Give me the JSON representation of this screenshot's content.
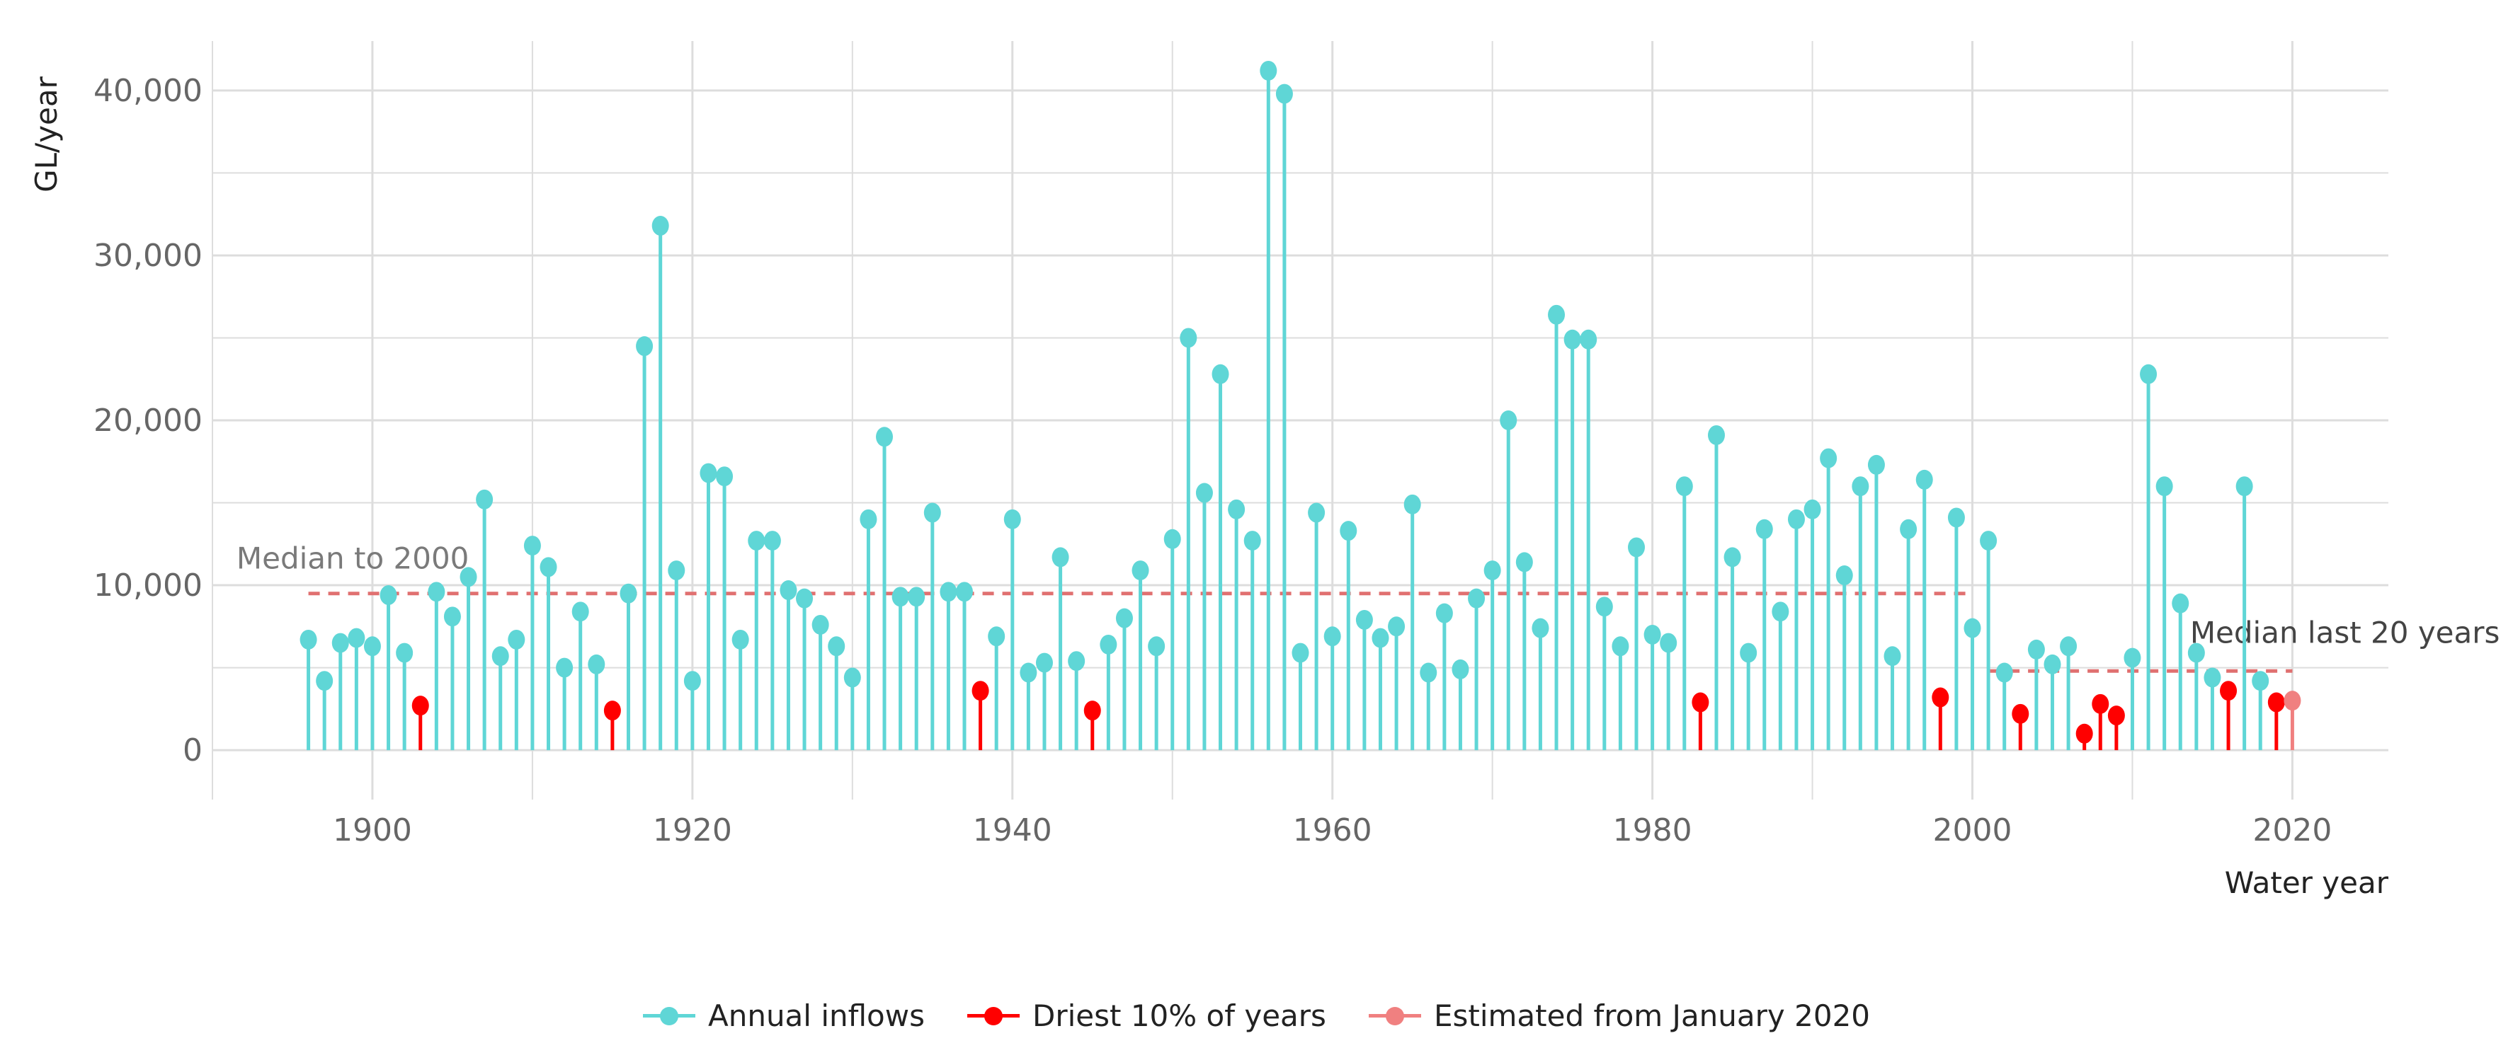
{
  "chart_data": {
    "type": "lollipop",
    "title": "",
    "xlabel": "Water year",
    "ylabel": "GL/year",
    "xlim": [
      1890,
      2026
    ],
    "ylim": [
      -3000,
      43000
    ],
    "x_ticks": [
      1900,
      1920,
      1940,
      1960,
      1980,
      2000,
      2020
    ],
    "y_ticks": [
      0,
      10000,
      20000,
      30000,
      40000
    ],
    "y_tick_labels": [
      "0",
      "10,000",
      "20,000",
      "30,000",
      "40,000"
    ],
    "x_tick_labels": [
      "1900",
      "1920",
      "1940",
      "1960",
      "1980",
      "2000",
      "2020"
    ],
    "grid": true,
    "colors": {
      "annual": "#5fd6d6",
      "driest": "#ff0000",
      "estimated": "#f08080",
      "median_line": "#e07070",
      "grid": "#dddddd"
    },
    "series": [
      {
        "name": "Annual inflows",
        "key": "annual",
        "points": [
          [
            1896,
            6700
          ],
          [
            1897,
            4200
          ],
          [
            1898,
            6500
          ],
          [
            1899,
            6800
          ],
          [
            1900,
            6300
          ],
          [
            1901,
            9400
          ],
          [
            1902,
            5900
          ],
          [
            1904,
            9600
          ],
          [
            1905,
            8100
          ],
          [
            1906,
            10500
          ],
          [
            1907,
            15200
          ],
          [
            1908,
            5700
          ],
          [
            1909,
            6700
          ],
          [
            1910,
            12400
          ],
          [
            1911,
            11100
          ],
          [
            1912,
            5000
          ],
          [
            1913,
            8400
          ],
          [
            1914,
            5200
          ],
          [
            1916,
            9500
          ],
          [
            1917,
            24500
          ],
          [
            1918,
            31800
          ],
          [
            1919,
            10900
          ],
          [
            1920,
            4200
          ],
          [
            1921,
            16800
          ],
          [
            1922,
            16600
          ],
          [
            1923,
            6700
          ],
          [
            1924,
            12700
          ],
          [
            1925,
            12700
          ],
          [
            1926,
            9700
          ],
          [
            1927,
            9200
          ],
          [
            1928,
            7600
          ],
          [
            1929,
            6300
          ],
          [
            1930,
            4400
          ],
          [
            1931,
            14000
          ],
          [
            1932,
            19000
          ],
          [
            1933,
            9300
          ],
          [
            1934,
            9300
          ],
          [
            1935,
            14400
          ],
          [
            1936,
            9600
          ],
          [
            1937,
            9600
          ],
          [
            1939,
            6900
          ],
          [
            1940,
            14000
          ],
          [
            1941,
            4700
          ],
          [
            1942,
            5300
          ],
          [
            1943,
            11700
          ],
          [
            1944,
            5400
          ],
          [
            1946,
            6400
          ],
          [
            1947,
            8000
          ],
          [
            1948,
            10900
          ],
          [
            1949,
            6300
          ],
          [
            1950,
            12800
          ],
          [
            1951,
            25000
          ],
          [
            1952,
            15600
          ],
          [
            1953,
            22800
          ],
          [
            1954,
            14600
          ],
          [
            1955,
            12700
          ],
          [
            1956,
            41200
          ],
          [
            1957,
            39800
          ],
          [
            1958,
            5900
          ],
          [
            1959,
            14400
          ],
          [
            1960,
            6900
          ],
          [
            1961,
            13300
          ],
          [
            1962,
            7900
          ],
          [
            1963,
            6800
          ],
          [
            1964,
            7500
          ],
          [
            1965,
            14900
          ],
          [
            1966,
            4700
          ],
          [
            1967,
            8300
          ],
          [
            1968,
            4900
          ],
          [
            1969,
            9200
          ],
          [
            1970,
            10900
          ],
          [
            1971,
            20000
          ],
          [
            1972,
            11400
          ],
          [
            1973,
            7400
          ],
          [
            1974,
            26400
          ],
          [
            1975,
            24900
          ],
          [
            1976,
            24900
          ],
          [
            1977,
            8700
          ],
          [
            1978,
            6300
          ],
          [
            1979,
            12300
          ],
          [
            1980,
            7000
          ],
          [
            1981,
            6500
          ],
          [
            1982,
            16000
          ],
          [
            1984,
            19100
          ],
          [
            1985,
            11700
          ],
          [
            1986,
            5900
          ],
          [
            1987,
            13400
          ],
          [
            1988,
            8400
          ],
          [
            1989,
            14000
          ],
          [
            1990,
            14600
          ],
          [
            1991,
            17700
          ],
          [
            1992,
            10600
          ],
          [
            1993,
            16000
          ],
          [
            1994,
            17300
          ],
          [
            1995,
            5700
          ],
          [
            1996,
            13400
          ],
          [
            1997,
            16400
          ],
          [
            1999,
            14100
          ],
          [
            2000,
            7400
          ],
          [
            2001,
            12700
          ],
          [
            2002,
            4700
          ],
          [
            2004,
            6100
          ],
          [
            2005,
            5200
          ],
          [
            2006,
            6300
          ],
          [
            2010,
            5600
          ],
          [
            2011,
            22800
          ],
          [
            2012,
            16000
          ],
          [
            2013,
            8900
          ],
          [
            2014,
            5900
          ],
          [
            2015,
            4400
          ],
          [
            2017,
            16000
          ],
          [
            2018,
            4200
          ]
        ]
      },
      {
        "name": "Driest 10% of years",
        "key": "driest",
        "points": [
          [
            1903,
            2700
          ],
          [
            1915,
            2400
          ],
          [
            1938,
            3600
          ],
          [
            1945,
            2400
          ],
          [
            1983,
            2900
          ],
          [
            1998,
            3200
          ],
          [
            2003,
            2200
          ],
          [
            2007,
            1000
          ],
          [
            2008,
            2800
          ],
          [
            2009,
            2100
          ],
          [
            2016,
            3600
          ],
          [
            2019,
            2900
          ]
        ]
      },
      {
        "name": "Estimated from January 2020",
        "key": "estimated",
        "points": [
          [
            2020,
            3000
          ]
        ]
      }
    ],
    "reference_lines": [
      {
        "label": "Median to 2000",
        "value": 9500,
        "x_from": 1896,
        "x_to": 2000,
        "label_x": 1891.5,
        "label_y": 11000
      },
      {
        "label": "Median last 20 years",
        "value": 4800,
        "x_from": 2001,
        "x_to": 2020,
        "label_x": 2013.6,
        "label_y": 6500
      }
    ],
    "legend": {
      "position": "bottom",
      "entries": [
        "Annual inflows",
        "Driest 10% of years",
        "Estimated from January 2020"
      ]
    }
  }
}
